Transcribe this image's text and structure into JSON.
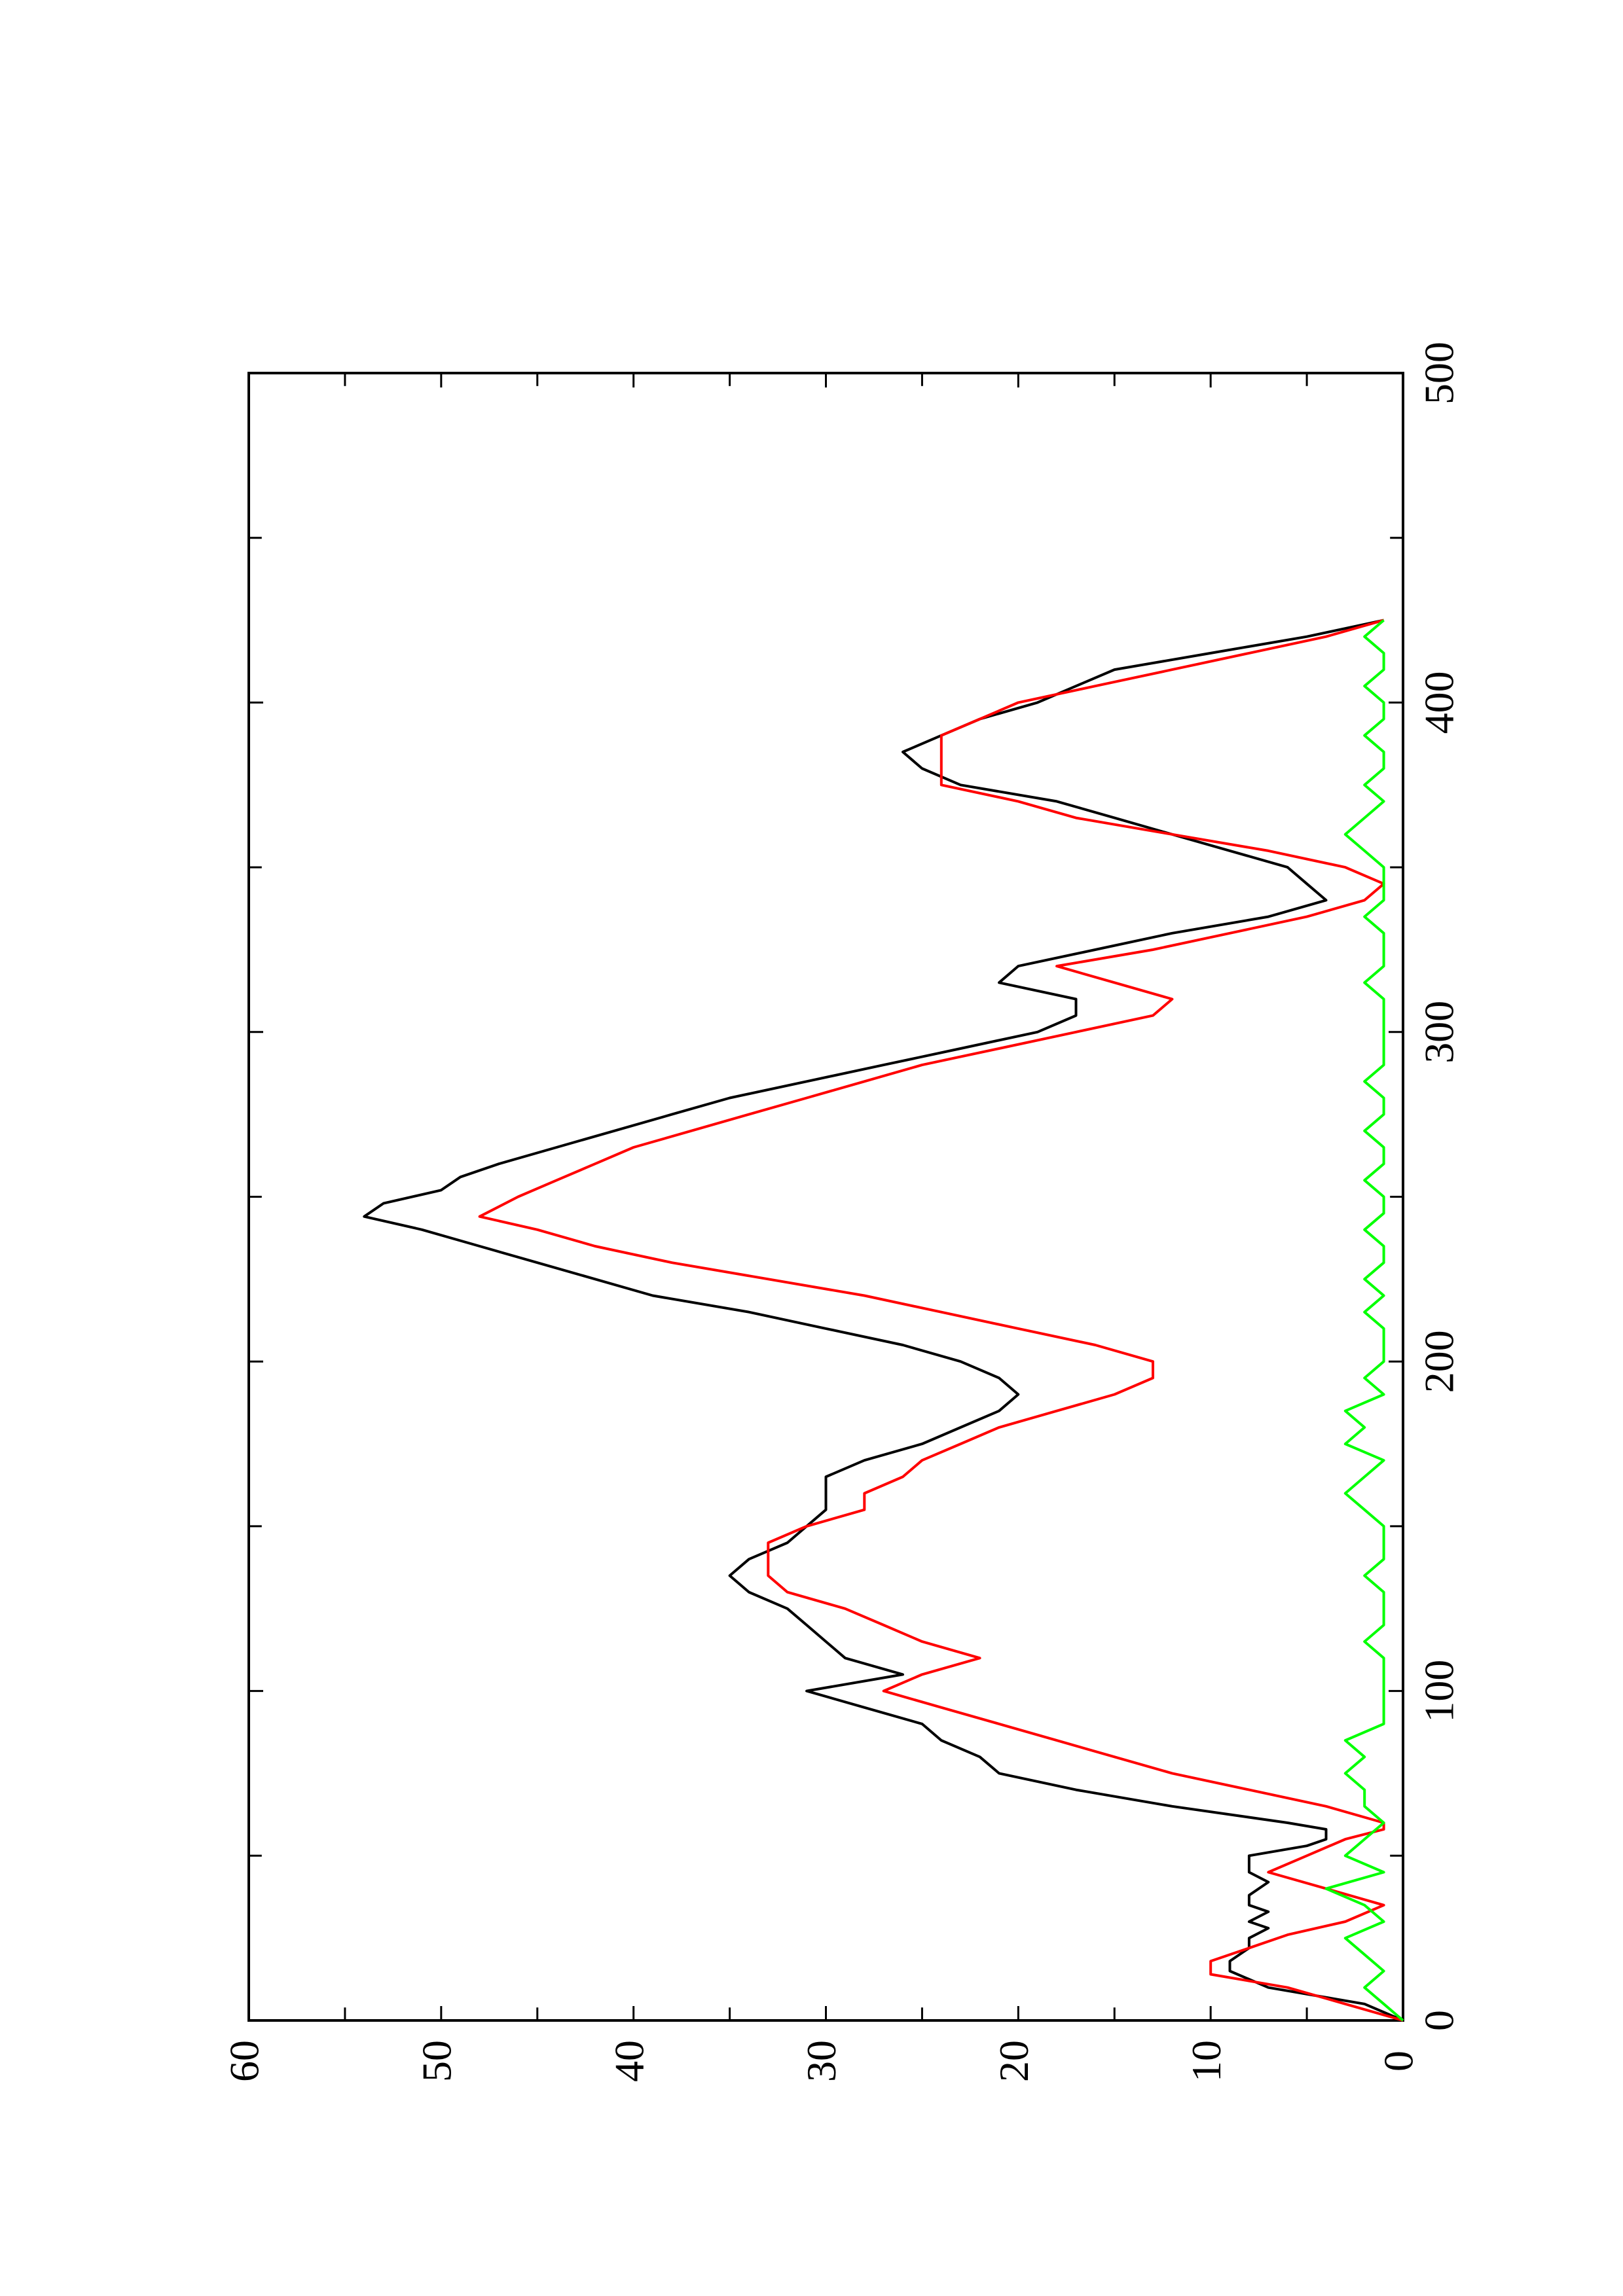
{
  "chart_data": {
    "type": "line",
    "title": "",
    "xlabel": "",
    "ylabel": "",
    "xlim": [
      0,
      500
    ],
    "ylim": [
      0,
      60
    ],
    "x_ticks": [
      "0",
      "100",
      "200",
      "300",
      "400",
      "500"
    ],
    "y_ticks": [
      "0",
      "10",
      "20",
      "30",
      "40",
      "50",
      "60"
    ],
    "grid": false,
    "legend": "none",
    "orientation": "rotated-90-ccw",
    "series": [
      {
        "color": "#000000",
        "x": [
          0,
          5,
          10,
          15,
          18,
          22,
          25,
          28,
          30,
          33,
          35,
          38,
          42,
          45,
          50,
          53,
          55,
          58,
          60,
          65,
          70,
          75,
          80,
          85,
          90,
          95,
          100,
          105,
          110,
          115,
          120,
          125,
          130,
          135,
          140,
          145,
          150,
          155,
          160,
          165,
          170,
          175,
          180,
          185,
          190,
          195,
          200,
          205,
          210,
          215,
          220,
          225,
          230,
          235,
          240,
          244,
          248,
          252,
          256,
          260,
          265,
          270,
          275,
          280,
          285,
          290,
          295,
          300,
          305,
          310,
          315,
          320,
          325,
          330,
          335,
          340,
          345,
          350,
          355,
          360,
          365,
          370,
          375,
          380,
          385,
          390,
          395,
          400,
          405,
          410,
          415,
          420,
          425
        ],
        "y": [
          0,
          2,
          7,
          9,
          9,
          8,
          8,
          7,
          8,
          7,
          8,
          8,
          7,
          8,
          8,
          5,
          4,
          4,
          6,
          12,
          17,
          21,
          22,
          24,
          25,
          28,
          31,
          26,
          29,
          30,
          31,
          32,
          34,
          35,
          34,
          32,
          31,
          30,
          30,
          30,
          28,
          25,
          23,
          21,
          20,
          21,
          23,
          26,
          30,
          34,
          39,
          42,
          45,
          48,
          51,
          54,
          53,
          50,
          49,
          47,
          44,
          41,
          38,
          35,
          31,
          27,
          23,
          19,
          17,
          17,
          21,
          20,
          16,
          12,
          7,
          4,
          5,
          6,
          9,
          12,
          15,
          18,
          23,
          25,
          26,
          24,
          22,
          19,
          17,
          15,
          10,
          5,
          1
        ]
      },
      {
        "color": "#ff0000",
        "x": [
          0,
          5,
          10,
          14,
          18,
          22,
          26,
          30,
          35,
          40,
          45,
          50,
          55,
          58,
          60,
          65,
          70,
          75,
          80,
          85,
          90,
          95,
          100,
          105,
          110,
          115,
          120,
          125,
          130,
          135,
          140,
          145,
          150,
          155,
          160,
          165,
          170,
          175,
          180,
          185,
          190,
          195,
          200,
          205,
          210,
          215,
          220,
          225,
          230,
          235,
          240,
          244,
          250,
          255,
          260,
          265,
          270,
          275,
          280,
          285,
          290,
          295,
          300,
          305,
          310,
          315,
          320,
          325,
          330,
          335,
          340,
          345,
          350,
          355,
          360,
          365,
          370,
          375,
          380,
          385,
          390,
          395,
          400,
          405,
          410,
          415,
          420,
          425
        ],
        "y": [
          0,
          3,
          6,
          10,
          10,
          8,
          6,
          3,
          1,
          4,
          7,
          5,
          3,
          1,
          1,
          4,
          8,
          12,
          15,
          18,
          21,
          24,
          27,
          25,
          22,
          25,
          27,
          29,
          32,
          33,
          33,
          33,
          31,
          28,
          28,
          26,
          25,
          23,
          21,
          18,
          15,
          13,
          13,
          16,
          20,
          24,
          28,
          33,
          38,
          42,
          45,
          48,
          46,
          44,
          42,
          40,
          37,
          34,
          31,
          28,
          25,
          21,
          17,
          13,
          12,
          15,
          18,
          13,
          9,
          5,
          2,
          1,
          3,
          7,
          12,
          17,
          20,
          24,
          24,
          24,
          24,
          22,
          20,
          16,
          12,
          8,
          4,
          1
        ]
      },
      {
        "color": "#00ff00",
        "x": [
          0,
          5,
          10,
          15,
          20,
          25,
          30,
          35,
          40,
          45,
          50,
          55,
          60,
          65,
          70,
          75,
          80,
          85,
          90,
          95,
          100,
          105,
          110,
          115,
          120,
          125,
          130,
          135,
          140,
          145,
          150,
          155,
          160,
          165,
          170,
          175,
          180,
          185,
          190,
          195,
          200,
          205,
          210,
          215,
          220,
          225,
          230,
          235,
          240,
          245,
          250,
          255,
          260,
          265,
          270,
          275,
          280,
          285,
          290,
          295,
          300,
          305,
          310,
          315,
          320,
          325,
          330,
          335,
          340,
          345,
          350,
          355,
          360,
          365,
          370,
          375,
          380,
          385,
          390,
          395,
          400,
          405,
          410,
          415,
          420,
          425
        ],
        "y": [
          0,
          1,
          2,
          1,
          2,
          3,
          1,
          2,
          4,
          1,
          3,
          2,
          1,
          2,
          2,
          3,
          2,
          3,
          1,
          1,
          1,
          1,
          1,
          2,
          1,
          1,
          1,
          2,
          1,
          1,
          1,
          2,
          3,
          2,
          1,
          3,
          2,
          3,
          1,
          2,
          1,
          1,
          1,
          2,
          1,
          2,
          1,
          1,
          2,
          1,
          1,
          2,
          1,
          1,
          2,
          1,
          1,
          2,
          1,
          1,
          1,
          1,
          1,
          2,
          1,
          1,
          1,
          2,
          1,
          1,
          1,
          2,
          3,
          2,
          1,
          2,
          1,
          1,
          2,
          1,
          1,
          2,
          1,
          1,
          2,
          1
        ]
      }
    ]
  }
}
